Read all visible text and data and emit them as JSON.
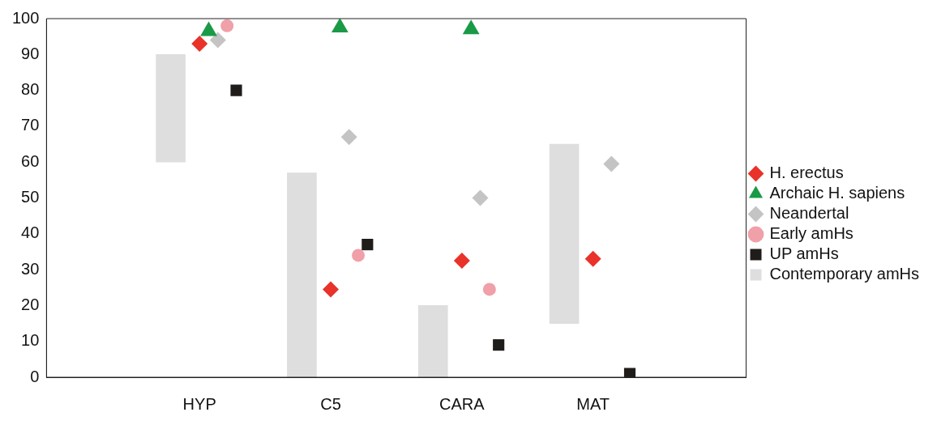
{
  "chart_data": {
    "type": "scatter",
    "categories": [
      "HYP",
      "C5",
      "CARA",
      "MAT"
    ],
    "series": [
      {
        "name": "H. erectus",
        "marker": "diamond",
        "color": "#e8322a",
        "values": [
          93,
          24.5,
          32.5,
          33
        ]
      },
      {
        "name": "Archaic H. sapiens",
        "marker": "triangle",
        "color": "#1a9a46",
        "values": [
          96.5,
          97.5,
          97,
          null
        ]
      },
      {
        "name": "Neandertal",
        "marker": "diamond",
        "color": "#c4c4c4",
        "values": [
          94,
          67,
          50,
          59.5
        ]
      },
      {
        "name": "Early amHs",
        "marker": "circle",
        "color": "#f0a0a8",
        "values": [
          98,
          34,
          24.5,
          null
        ]
      },
      {
        "name": "UP amHs",
        "marker": "square",
        "color": "#201c1a",
        "values": [
          80,
          37,
          9,
          1
        ]
      },
      {
        "name": "Contemporary amHs",
        "type": "bar",
        "color": "#dedede",
        "base": [
          60,
          0,
          0,
          15
        ],
        "values": [
          30,
          57,
          20,
          50
        ]
      }
    ],
    "ylim": [
      0,
      100
    ],
    "yticks": [
      0,
      10,
      20,
      30,
      40,
      50,
      60,
      70,
      80,
      90,
      100
    ],
    "grid": false,
    "legend": "right"
  }
}
